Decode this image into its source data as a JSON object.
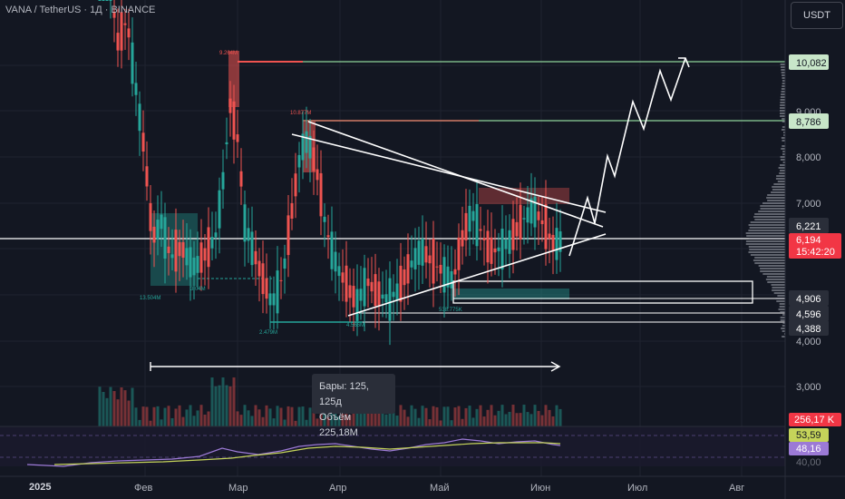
{
  "header": {
    "symbol": "VANA / TetherUS · 1Д · BINANCE"
  },
  "currency": "USDT",
  "measure": {
    "bars": "Бары: 125, 125д",
    "volume": "Объём 225,18M"
  },
  "colors": {
    "bull": "#26a69a",
    "bear": "#ef5350",
    "green_line": "#8fd49a",
    "rsi": "#9c7ad6",
    "rsi_ma": "#c5d45a",
    "grid": "#1f2330"
  },
  "chart_data": {
    "type": "candlestick",
    "y_axis_ticks": [
      "10,082",
      "9,000",
      "8,786",
      "8,000",
      "7,000",
      "6,221",
      "6,194",
      "15:42:20",
      "4,906",
      "4,596",
      "4,388",
      "4,000",
      "3,000"
    ],
    "x_axis_ticks": [
      "2025",
      "Фев",
      "Мар",
      "Апр",
      "Май",
      "Июн",
      "Июл",
      "Авг"
    ],
    "price_levels": {
      "target_1": 10.082,
      "target_2": 8.786,
      "resistance": 6.221,
      "last": 6.194,
      "support_1": 4.906,
      "support_2": 4.596,
      "support_3": 4.388
    },
    "countdown": "15:42:20",
    "candles_approx": [
      {
        "period": "Янв",
        "high": 13,
        "low": 7.0,
        "close": 8.0
      },
      {
        "period": "Фев",
        "high": 8.0,
        "low": 5.3,
        "close": 6.2
      },
      {
        "period": "Мар",
        "high": 9.26,
        "low": 4.9,
        "close": 5.4
      },
      {
        "period": "Апр",
        "high": 8.78,
        "low": 4.5,
        "close": 5.0
      },
      {
        "period": "Май",
        "high": 6.9,
        "low": 5.1,
        "close": 6.4
      },
      {
        "period": "Июн",
        "high": 7.1,
        "low": 5.7,
        "close": 6.194
      }
    ],
    "annotations": [
      "9.264M",
      "10.877M",
      "13.504M",
      "3.04M",
      "2.479M",
      "4.566M",
      "538.775K"
    ],
    "volume_last": "256,17 K",
    "rsi": {
      "value": "48,16",
      "ma": "53,59",
      "extra": "40,00"
    }
  }
}
